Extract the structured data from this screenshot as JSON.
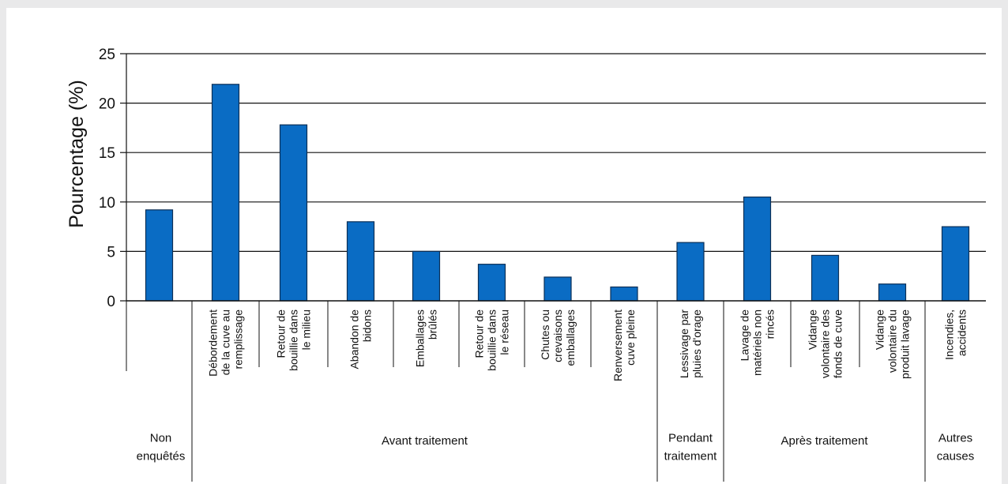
{
  "chart_data": {
    "type": "bar",
    "title": "",
    "ylabel": "Pourcentage (%)",
    "ylim": [
      0,
      25
    ],
    "yticks": [
      0,
      5,
      10,
      15,
      20,
      25
    ],
    "grid": true,
    "bar_color": "#0a6cc4",
    "categories": [
      {
        "lines": [
          "Non",
          "enquêtés"
        ],
        "rotated": false
      },
      {
        "lines": [
          "Débordement",
          "de la cuve au",
          "remplissage"
        ],
        "rotated": true
      },
      {
        "lines": [
          "Retour de",
          "bouillie dans",
          "le milieu"
        ],
        "rotated": true
      },
      {
        "lines": [
          "Abandon de",
          "bidons"
        ],
        "rotated": true
      },
      {
        "lines": [
          "Emballages",
          "brûlés"
        ],
        "rotated": true
      },
      {
        "lines": [
          "Retour de",
          "bouillie dans",
          "le réseau"
        ],
        "rotated": true
      },
      {
        "lines": [
          "Chutes ou",
          "crevaisons",
          "emballages"
        ],
        "rotated": true
      },
      {
        "lines": [
          "Renversement",
          "cuve pleine"
        ],
        "rotated": true
      },
      {
        "lines": [
          "Lessivage par",
          "pluies d'orage"
        ],
        "rotated": true
      },
      {
        "lines": [
          "Lavage de",
          "matériels non",
          "rincés"
        ],
        "rotated": true
      },
      {
        "lines": [
          "Vidange",
          "volontaire des",
          "fonds de cuve"
        ],
        "rotated": true
      },
      {
        "lines": [
          "Vidange",
          "volontaire du",
          "produit lavage"
        ],
        "rotated": true
      },
      {
        "lines": [
          "Incendies,",
          "accidents"
        ],
        "rotated": true
      }
    ],
    "values": [
      9.2,
      21.9,
      17.8,
      8.0,
      5.0,
      3.7,
      2.4,
      1.4,
      5.9,
      10.5,
      4.6,
      1.7,
      7.5
    ],
    "groups": [
      {
        "lines": [
          "Non",
          "enquêtés"
        ],
        "from": 0,
        "to": 0
      },
      {
        "lines": [
          "Avant traitement"
        ],
        "from": 1,
        "to": 7
      },
      {
        "lines": [
          "Pendant",
          "traitement"
        ],
        "from": 8,
        "to": 8
      },
      {
        "lines": [
          "Après traitement"
        ],
        "from": 9,
        "to": 11
      },
      {
        "lines": [
          "Autres",
          "causes"
        ],
        "from": 12,
        "to": 12
      }
    ]
  }
}
